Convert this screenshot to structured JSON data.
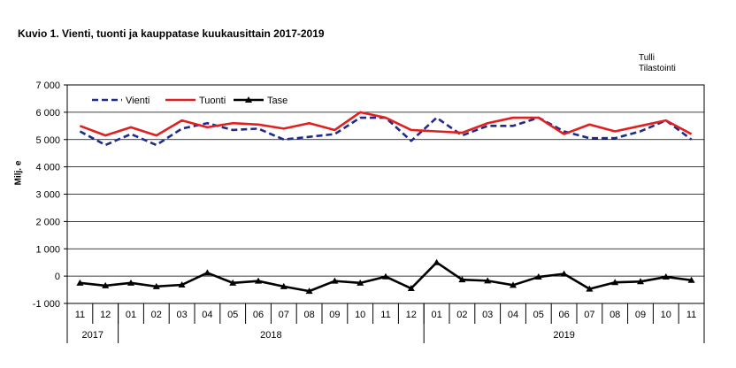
{
  "chart_data": {
    "type": "line",
    "title": "Kuvio  1. Vienti, tuonti ja kauppatase kuukausittain 2017-2019",
    "source": [
      "Tulli",
      "Tilastointi"
    ],
    "ylabel": "Milj. e",
    "ylim": [
      -1000,
      7000
    ],
    "y_ticks": [
      "7 000",
      "6 000",
      "5 000",
      "4 000",
      "3 000",
      "2 000",
      "1 000",
      "0",
      "-1 000"
    ],
    "y_tick_values": [
      7000,
      6000,
      5000,
      4000,
      3000,
      2000,
      1000,
      0,
      -1000
    ],
    "grid": true,
    "legend_position": "top-left",
    "categories": [
      "11",
      "12",
      "01",
      "02",
      "03",
      "04",
      "05",
      "06",
      "07",
      "08",
      "09",
      "10",
      "11",
      "12",
      "01",
      "02",
      "03",
      "04",
      "05",
      "06",
      "07",
      "08",
      "09",
      "10",
      "11"
    ],
    "year_groups": [
      {
        "label": "2017",
        "count": 2
      },
      {
        "label": "2018",
        "count": 12
      },
      {
        "label": "2019",
        "count": 11
      }
    ],
    "series": [
      {
        "name": "Vienti",
        "color": "#1f2a8a",
        "style": "dashed",
        "values": [
          5300,
          4800,
          5200,
          4800,
          5400,
          5600,
          5350,
          5400,
          5000,
          5100,
          5200,
          5800,
          5800,
          4950,
          5800,
          5150,
          5500,
          5500,
          5800,
          5300,
          5050,
          5050,
          5300,
          5700,
          5000
        ]
      },
      {
        "name": "Tuonti",
        "color": "#e02020",
        "style": "solid",
        "values": [
          5500,
          5150,
          5450,
          5150,
          5700,
          5450,
          5600,
          5550,
          5400,
          5600,
          5350,
          6000,
          5800,
          5350,
          5300,
          5250,
          5600,
          5800,
          5800,
          5200,
          5550,
          5300,
          5500,
          5700,
          5200
        ]
      },
      {
        "name": "Tase",
        "color": "#000000",
        "style": "solid-triangle",
        "values": [
          -250,
          -350,
          -250,
          -380,
          -320,
          120,
          -250,
          -180,
          -380,
          -550,
          -180,
          -250,
          -20,
          -450,
          500,
          -130,
          -170,
          -330,
          -30,
          80,
          -470,
          -230,
          -200,
          -30,
          -150
        ]
      }
    ]
  }
}
